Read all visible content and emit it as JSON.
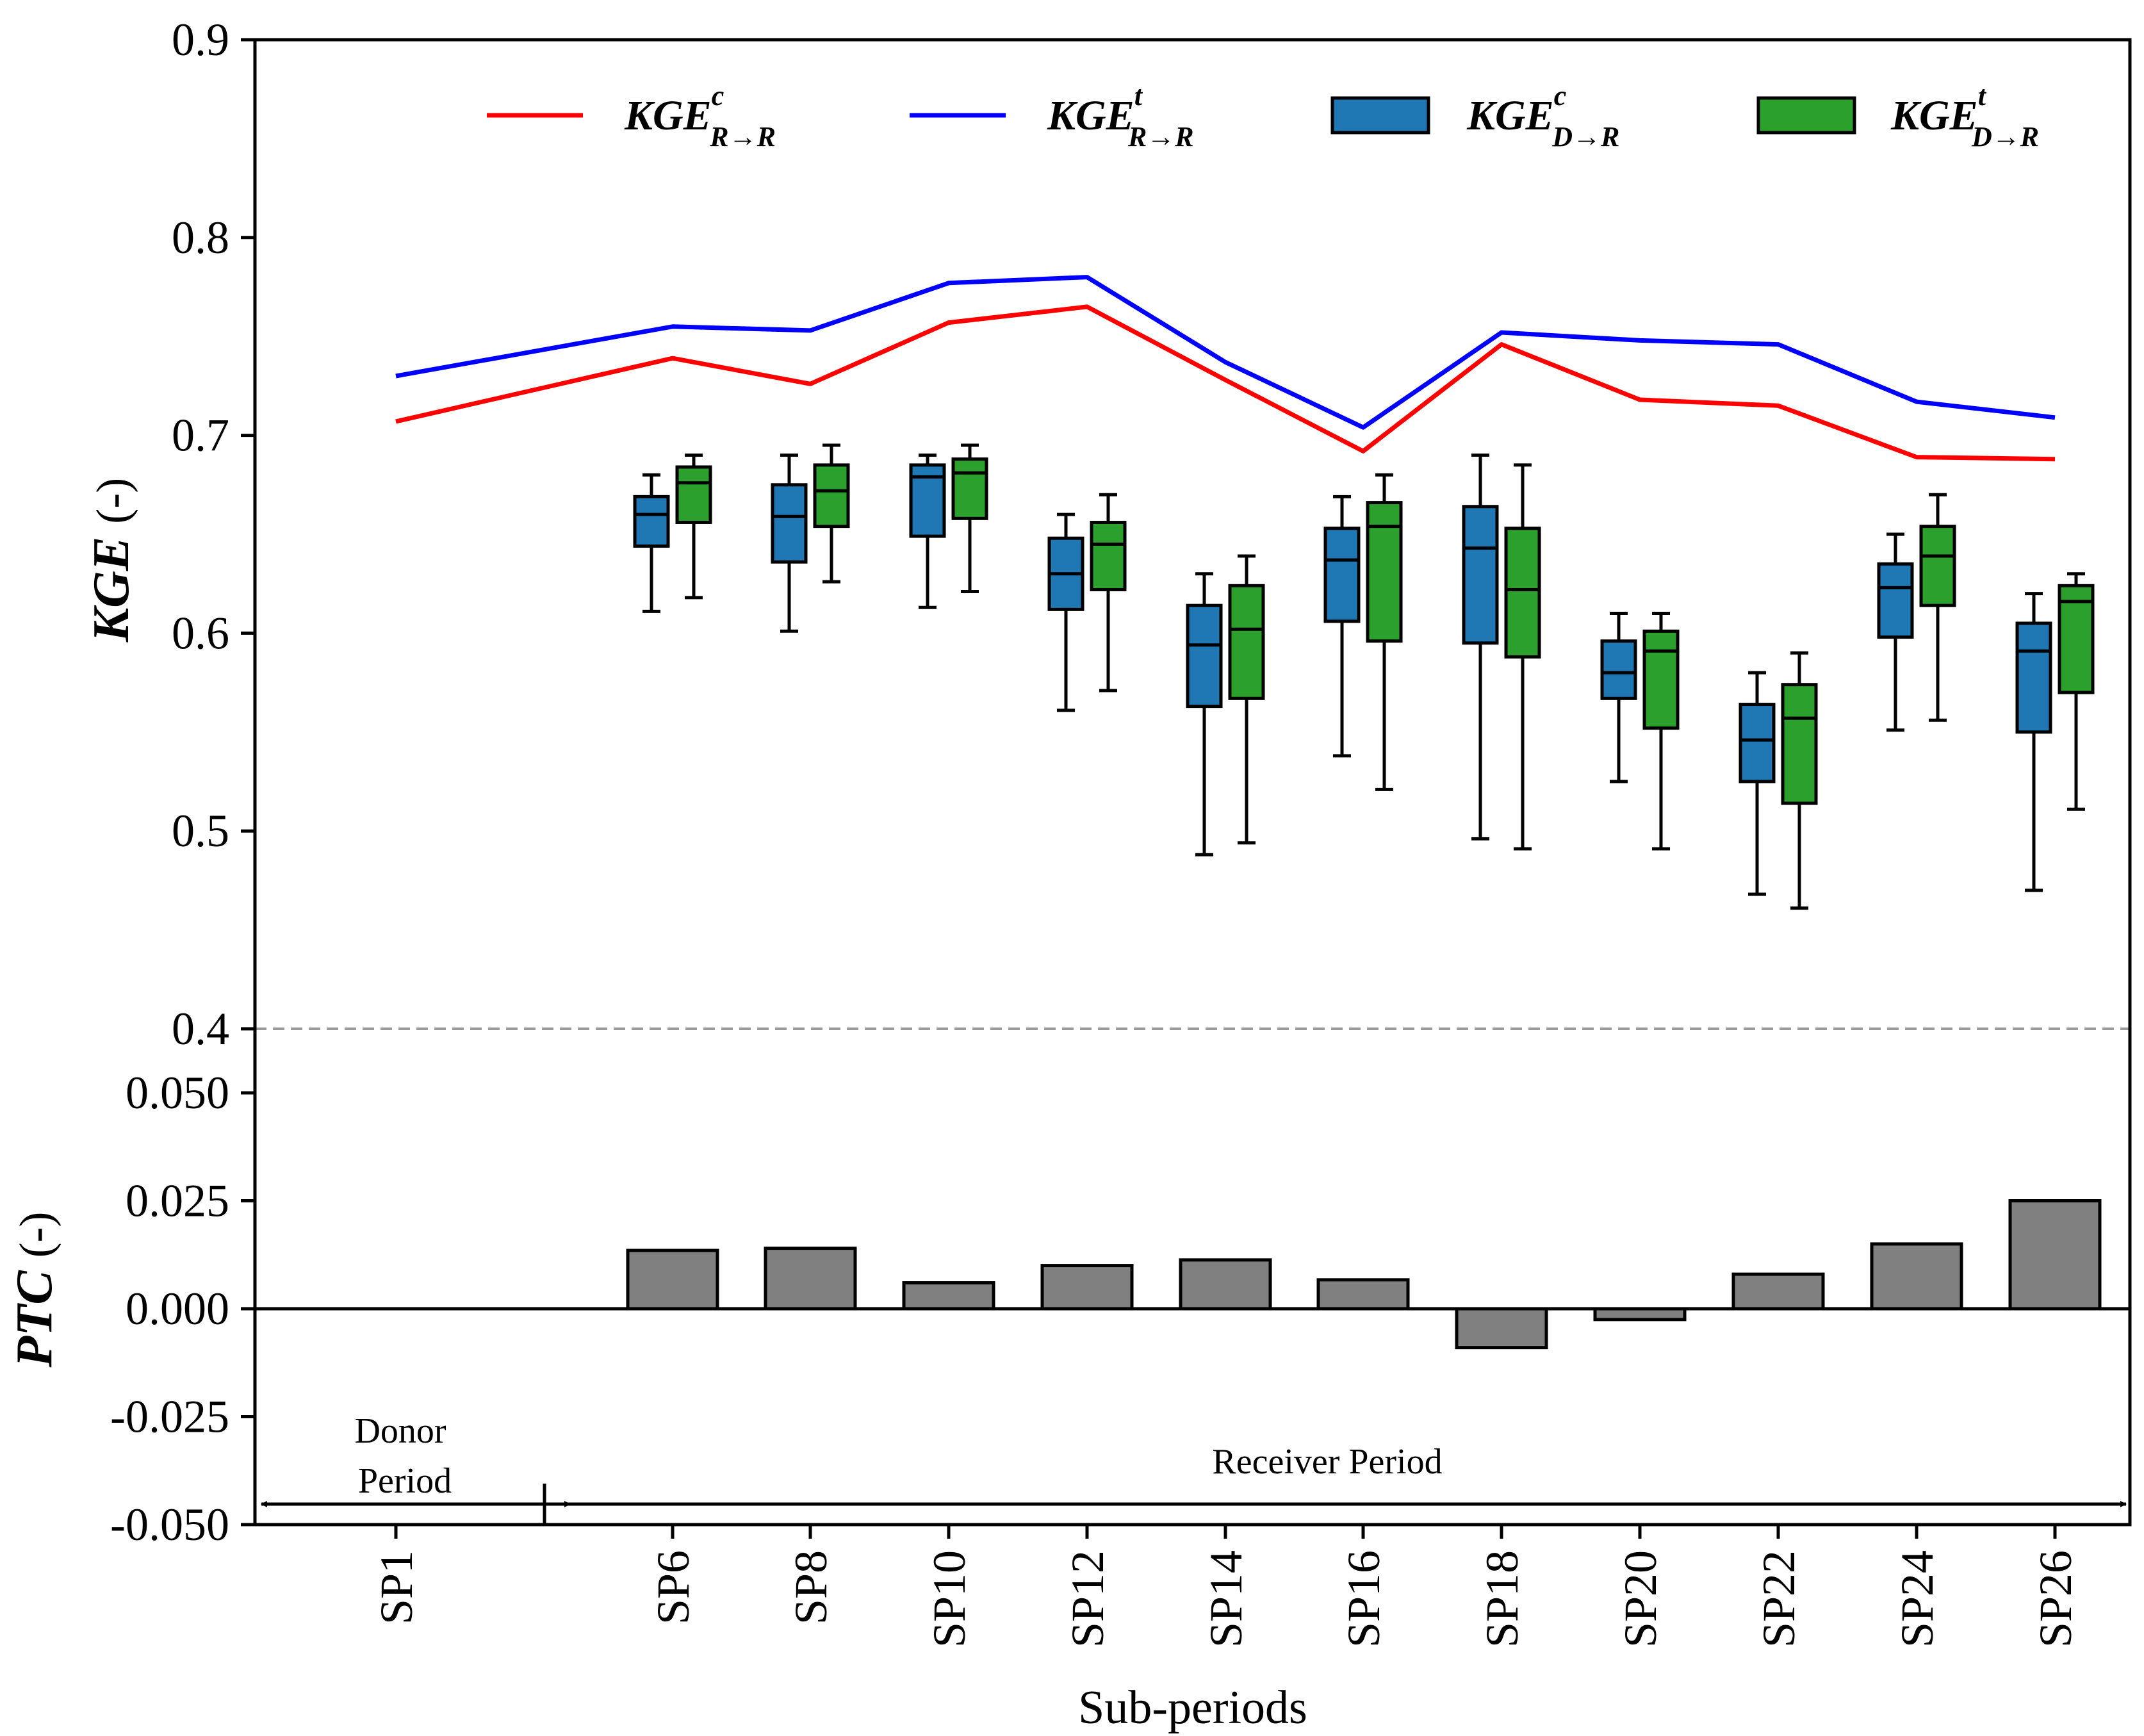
{
  "chart_data": {
    "type": "line+box+bar",
    "categories": [
      "SP1",
      "SP6",
      "SP8",
      "SP10",
      "SP12",
      "SP14",
      "SP16",
      "SP18",
      "SP20",
      "SP22",
      "SP24",
      "SP26"
    ],
    "xlabel": "Sub-periods",
    "colors": {
      "line_c": "#ff0000",
      "line_t": "#0000ff",
      "box_c": "#1f77b4",
      "box_t": "#2ca02c",
      "bar": "#808080",
      "zero_line": "#000000",
      "divider": "#999999"
    },
    "kge_panel": {
      "ylabel": "KGE",
      "ylabel_unit": "(-)",
      "ylim": [
        0.4,
        0.9
      ],
      "yticks": [
        "0.4",
        "0.5",
        "0.6",
        "0.7",
        "0.8",
        "0.9"
      ],
      "lines": [
        {
          "name": "KGE c R→R",
          "legend_main": "KGE",
          "legend_sup": "c",
          "legend_sub": "R→R",
          "color": "#ff0000",
          "values": [
            0.707,
            0.739,
            0.726,
            0.757,
            0.765,
            0.728,
            0.692,
            0.746,
            0.718,
            0.715,
            0.689,
            0.688
          ]
        },
        {
          "name": "KGE t R→R",
          "legend_main": "KGE",
          "legend_sup": "t",
          "legend_sub": "R→R",
          "color": "#0000ff",
          "values": [
            0.73,
            0.755,
            0.753,
            0.777,
            0.78,
            0.737,
            0.704,
            0.752,
            0.748,
            0.746,
            0.717,
            0.709
          ]
        }
      ],
      "boxes": [
        {
          "name": "KGE c D→R",
          "legend_main": "KGE",
          "legend_sup": "c",
          "legend_sub": "D→R",
          "color": "#1f77b4",
          "stats": [
            null,
            {
              "whislo": 0.611,
              "q1": 0.644,
              "med": 0.66,
              "q3": 0.669,
              "whishi": 0.68
            },
            {
              "whislo": 0.601,
              "q1": 0.636,
              "med": 0.659,
              "q3": 0.675,
              "whishi": 0.69
            },
            {
              "whislo": 0.613,
              "q1": 0.649,
              "med": 0.679,
              "q3": 0.685,
              "whishi": 0.69
            },
            {
              "whislo": 0.561,
              "q1": 0.612,
              "med": 0.63,
              "q3": 0.648,
              "whishi": 0.66
            },
            {
              "whislo": 0.488,
              "q1": 0.563,
              "med": 0.594,
              "q3": 0.614,
              "whishi": 0.63
            },
            {
              "whislo": 0.538,
              "q1": 0.606,
              "med": 0.637,
              "q3": 0.653,
              "whishi": 0.669
            },
            {
              "whislo": 0.496,
              "q1": 0.595,
              "med": 0.643,
              "q3": 0.664,
              "whishi": 0.69
            },
            {
              "whislo": 0.525,
              "q1": 0.567,
              "med": 0.58,
              "q3": 0.596,
              "whishi": 0.61
            },
            {
              "whislo": 0.468,
              "q1": 0.525,
              "med": 0.546,
              "q3": 0.564,
              "whishi": 0.58
            },
            {
              "whislo": 0.551,
              "q1": 0.598,
              "med": 0.623,
              "q3": 0.635,
              "whishi": 0.65
            },
            {
              "whislo": 0.47,
              "q1": 0.55,
              "med": 0.591,
              "q3": 0.605,
              "whishi": 0.62
            }
          ]
        },
        {
          "name": "KGE t D→R",
          "legend_main": "KGE",
          "legend_sup": "t",
          "legend_sub": "D→R",
          "color": "#2ca02c",
          "stats": [
            null,
            {
              "whislo": 0.618,
              "q1": 0.656,
              "med": 0.676,
              "q3": 0.684,
              "whishi": 0.69
            },
            {
              "whislo": 0.626,
              "q1": 0.654,
              "med": 0.672,
              "q3": 0.685,
              "whishi": 0.695
            },
            {
              "whislo": 0.621,
              "q1": 0.658,
              "med": 0.681,
              "q3": 0.688,
              "whishi": 0.695
            },
            {
              "whislo": 0.571,
              "q1": 0.622,
              "med": 0.645,
              "q3": 0.656,
              "whishi": 0.67
            },
            {
              "whislo": 0.494,
              "q1": 0.567,
              "med": 0.602,
              "q3": 0.624,
              "whishi": 0.639
            },
            {
              "whislo": 0.521,
              "q1": 0.596,
              "med": 0.654,
              "q3": 0.666,
              "whishi": 0.68
            },
            {
              "whislo": 0.491,
              "q1": 0.588,
              "med": 0.622,
              "q3": 0.653,
              "whishi": 0.685
            },
            {
              "whislo": 0.491,
              "q1": 0.552,
              "med": 0.591,
              "q3": 0.601,
              "whishi": 0.61
            },
            {
              "whislo": 0.461,
              "q1": 0.514,
              "med": 0.557,
              "q3": 0.574,
              "whishi": 0.59
            },
            {
              "whislo": 0.556,
              "q1": 0.614,
              "med": 0.639,
              "q3": 0.654,
              "whishi": 0.67
            },
            {
              "whislo": 0.511,
              "q1": 0.57,
              "med": 0.616,
              "q3": 0.624,
              "whishi": 0.63
            }
          ]
        }
      ]
    },
    "ptc_panel": {
      "ylabel": "PTC",
      "ylabel_unit": "(-)",
      "ylim": [
        -0.05,
        0.05
      ],
      "yticks": [
        "-0.050",
        "-0.025",
        "0.000",
        "0.025",
        "0.050"
      ],
      "bars": [
        null,
        0.0135,
        0.014,
        0.006,
        0.01,
        0.0113,
        0.0067,
        -0.009,
        -0.0025,
        0.008,
        0.015,
        0.025
      ],
      "annotations": {
        "donor_line1": "Donor",
        "donor_line2": "Period",
        "receiver": "Receiver Period"
      }
    }
  }
}
